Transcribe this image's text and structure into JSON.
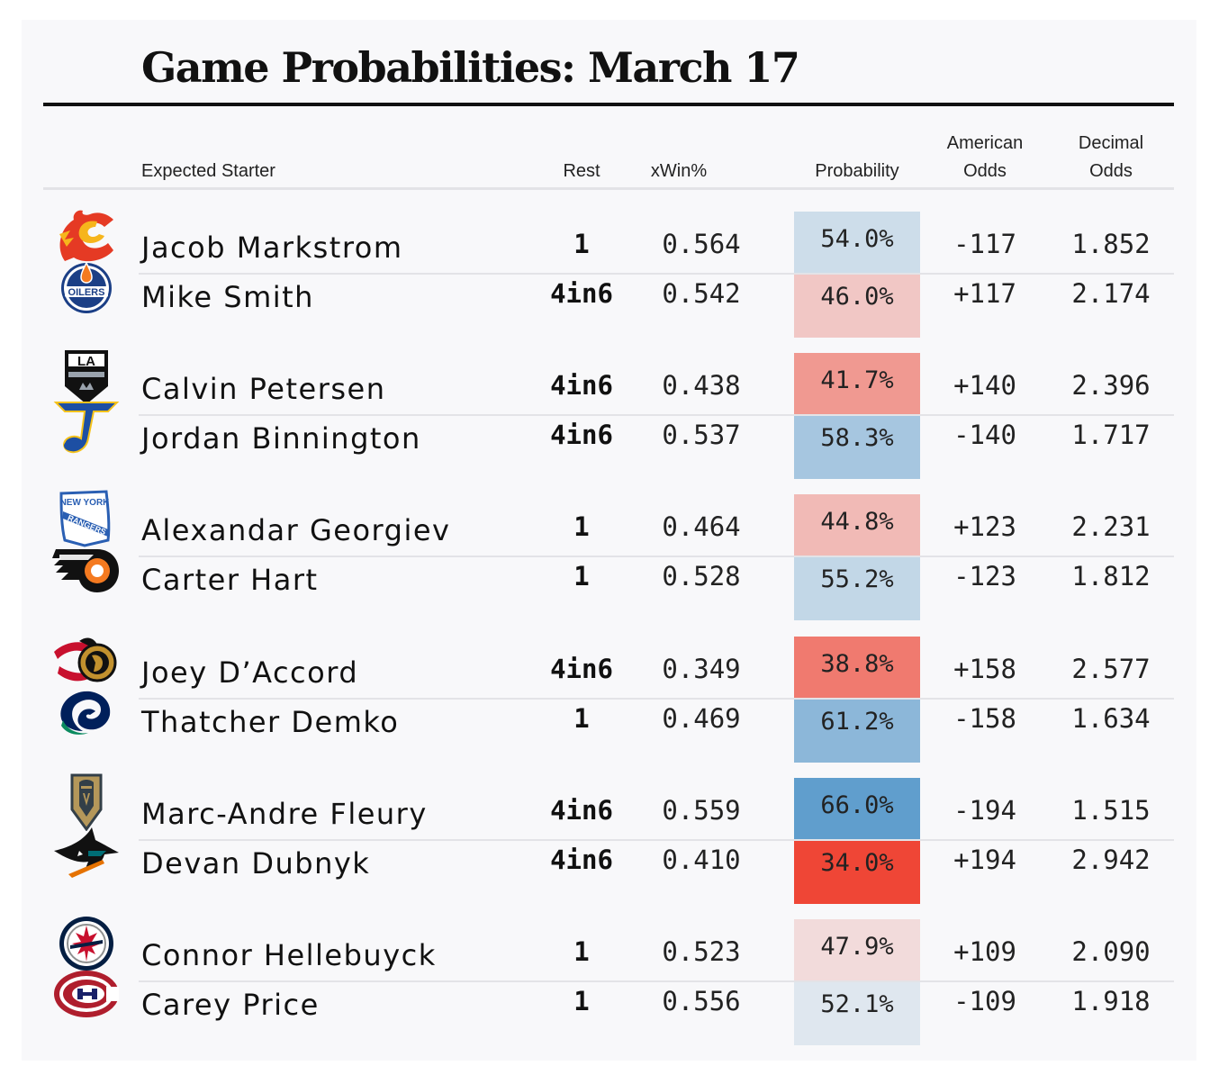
{
  "title": "Game Probabilities: March 17",
  "headers": {
    "starter": "Expected Starter",
    "rest": "Rest",
    "xwin": "xWin%",
    "probability": "Probability",
    "american_1": "American",
    "american_2": "Odds",
    "decimal_1": "Decimal",
    "decimal_2": "Odds"
  },
  "colors": {
    "prob_scale_low": "#ef4636",
    "prob_scale_mid": "#f2f2f4",
    "prob_scale_high": "#5b9bcc"
  },
  "games": [
    {
      "teams": [
        {
          "logo": "calgary-flames-logo",
          "starter": "Jacob Markstrom",
          "rest": "1",
          "xwin": "0.564",
          "probability": "54.0%",
          "prob_value": 0.54,
          "american": "-117",
          "decimal": "1.852"
        },
        {
          "logo": "edmonton-oilers-logo",
          "starter": "Mike Smith",
          "rest": "4in6",
          "xwin": "0.542",
          "probability": "46.0%",
          "prob_value": 0.46,
          "american": "+117",
          "decimal": "2.174"
        }
      ]
    },
    {
      "teams": [
        {
          "logo": "los-angeles-kings-logo",
          "starter": "Calvin Petersen",
          "rest": "4in6",
          "xwin": "0.438",
          "probability": "41.7%",
          "prob_value": 0.417,
          "american": "+140",
          "decimal": "2.396"
        },
        {
          "logo": "st-louis-blues-logo",
          "starter": "Jordan Binnington",
          "rest": "4in6",
          "xwin": "0.537",
          "probability": "58.3%",
          "prob_value": 0.583,
          "american": "-140",
          "decimal": "1.717"
        }
      ]
    },
    {
      "teams": [
        {
          "logo": "new-york-rangers-logo",
          "logo_text_1": "NEW YORK",
          "logo_text_2": "RANGERS",
          "starter": "Alexandar Georgiev",
          "rest": "1",
          "xwin": "0.464",
          "probability": "44.8%",
          "prob_value": 0.448,
          "american": "+123",
          "decimal": "2.231"
        },
        {
          "logo": "philadelphia-flyers-logo",
          "starter": "Carter Hart",
          "rest": "1",
          "xwin": "0.528",
          "probability": "55.2%",
          "prob_value": 0.552,
          "american": "-123",
          "decimal": "1.812"
        }
      ]
    },
    {
      "teams": [
        {
          "logo": "ottawa-senators-logo",
          "starter": "Joey D’Accord",
          "rest": "4in6",
          "xwin": "0.349",
          "probability": "38.8%",
          "prob_value": 0.388,
          "american": "+158",
          "decimal": "2.577"
        },
        {
          "logo": "vancouver-canucks-logo",
          "starter": "Thatcher Demko",
          "rest": "1",
          "xwin": "0.469",
          "probability": "61.2%",
          "prob_value": 0.612,
          "american": "-158",
          "decimal": "1.634"
        }
      ]
    },
    {
      "teams": [
        {
          "logo": "vegas-golden-knights-logo",
          "starter": "Marc-Andre Fleury",
          "rest": "4in6",
          "xwin": "0.559",
          "probability": "66.0%",
          "prob_value": 0.66,
          "american": "-194",
          "decimal": "1.515"
        },
        {
          "logo": "san-jose-sharks-logo",
          "starter": "Devan Dubnyk",
          "rest": "4in6",
          "xwin": "0.410",
          "probability": "34.0%",
          "prob_value": 0.34,
          "american": "+194",
          "decimal": "2.942"
        }
      ]
    },
    {
      "teams": [
        {
          "logo": "winnipeg-jets-logo",
          "starter": "Connor Hellebuyck",
          "rest": "1",
          "xwin": "0.523",
          "probability": "47.9%",
          "prob_value": 0.479,
          "american": "+109",
          "decimal": "2.090"
        },
        {
          "logo": "montreal-canadiens-logo",
          "starter": "Carey Price",
          "rest": "1",
          "xwin": "0.556",
          "probability": "52.1%",
          "prob_value": 0.521,
          "american": "-109",
          "decimal": "1.918"
        }
      ]
    }
  ]
}
